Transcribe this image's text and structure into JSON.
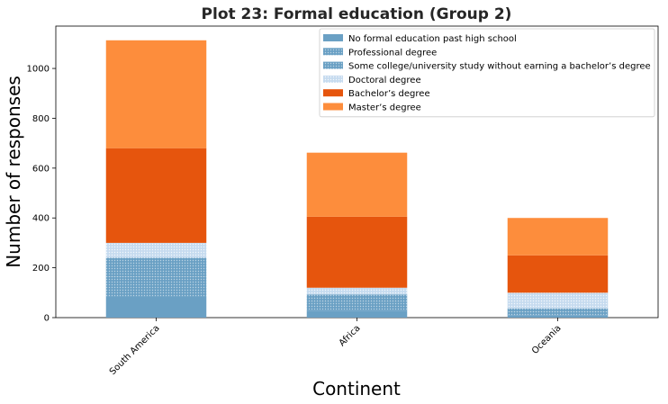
{
  "chart_data": {
    "type": "bar",
    "stacked": true,
    "title": "Plot 23: Formal education (Group 2)",
    "xlabel": "Continent",
    "ylabel": "Number of responses",
    "categories": [
      "South America",
      "Africa",
      "Oceania"
    ],
    "ylim": [
      0,
      1170
    ],
    "yticks": [
      0,
      200,
      400,
      600,
      800,
      1000
    ],
    "grid": false,
    "legend_position": "top-right",
    "series": [
      {
        "name": "No formal education past high school",
        "values": [
          85,
          28,
          10
        ],
        "color": "#6aa0c4",
        "pattern": "none"
      },
      {
        "name": "Professional degree",
        "values": [
          80,
          35,
          12
        ],
        "color": "#6aa0c4",
        "pattern": "dots"
      },
      {
        "name": "Some college/university study without earning a bachelor’s degree",
        "values": [
          75,
          30,
          15
        ],
        "color": "#c6dbef",
        "pattern": "dots"
      },
      {
        "name": "Doctoral degree",
        "values": [
          60,
          27,
          63
        ],
        "color": "#c6dbef",
        "pattern": "dots-light"
      },
      {
        "name": "Bachelor’s degree",
        "values": [
          380,
          285,
          150
        ],
        "color": "#e6550d",
        "pattern": "none"
      },
      {
        "name": "Master’s degree",
        "values": [
          433,
          257,
          150
        ],
        "color": "#fd8d3c",
        "pattern": "none"
      }
    ]
  }
}
